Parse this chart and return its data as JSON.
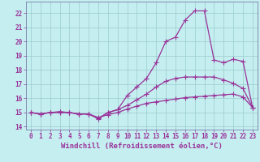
{
  "xlabel": "Windchill (Refroidissement éolien,°C)",
  "background_color": "#c5eef0",
  "grid_color": "#99cccc",
  "line_color": "#993399",
  "spine_color": "#666699",
  "xlim": [
    -0.5,
    23.5
  ],
  "ylim": [
    13.8,
    22.8
  ],
  "xticks": [
    0,
    1,
    2,
    3,
    4,
    5,
    6,
    7,
    8,
    9,
    10,
    11,
    12,
    13,
    14,
    15,
    16,
    17,
    18,
    19,
    20,
    21,
    22,
    23
  ],
  "yticks": [
    14,
    15,
    16,
    17,
    18,
    19,
    20,
    21,
    22
  ],
  "line1_x": [
    0,
    1,
    2,
    3,
    4,
    5,
    6,
    7,
    8,
    9,
    10,
    11,
    12,
    13,
    14,
    15,
    16,
    17,
    18,
    19,
    20,
    21,
    22,
    23
  ],
  "line1_y": [
    15.0,
    14.9,
    15.0,
    15.0,
    15.0,
    14.9,
    14.9,
    14.65,
    14.85,
    15.0,
    15.25,
    15.45,
    15.65,
    15.75,
    15.85,
    15.95,
    16.05,
    16.1,
    16.15,
    16.2,
    16.25,
    16.3,
    16.1,
    15.35
  ],
  "line2_x": [
    0,
    1,
    2,
    3,
    4,
    5,
    6,
    7,
    8,
    9,
    10,
    11,
    12,
    13,
    14,
    15,
    16,
    17,
    18,
    19,
    20,
    21,
    22,
    23
  ],
  "line2_y": [
    15.0,
    14.9,
    15.0,
    15.05,
    15.0,
    14.9,
    14.9,
    14.6,
    15.0,
    15.2,
    15.5,
    15.9,
    16.3,
    16.8,
    17.2,
    17.4,
    17.5,
    17.5,
    17.5,
    17.5,
    17.3,
    17.05,
    16.7,
    15.35
  ],
  "line3_x": [
    0,
    1,
    2,
    3,
    4,
    5,
    6,
    7,
    8,
    9,
    10,
    11,
    12,
    13,
    14,
    15,
    16,
    17,
    18,
    19,
    20,
    21,
    22,
    23
  ],
  "line3_y": [
    15.0,
    14.9,
    15.0,
    15.05,
    15.0,
    14.9,
    14.9,
    14.55,
    15.0,
    15.2,
    16.2,
    16.8,
    17.4,
    18.5,
    20.0,
    20.3,
    21.5,
    22.15,
    22.15,
    18.7,
    18.5,
    18.75,
    18.6,
    15.35
  ],
  "marker_size": 2.5,
  "linewidth": 0.9,
  "tick_fontsize": 5.5,
  "label_fontsize": 6.5
}
